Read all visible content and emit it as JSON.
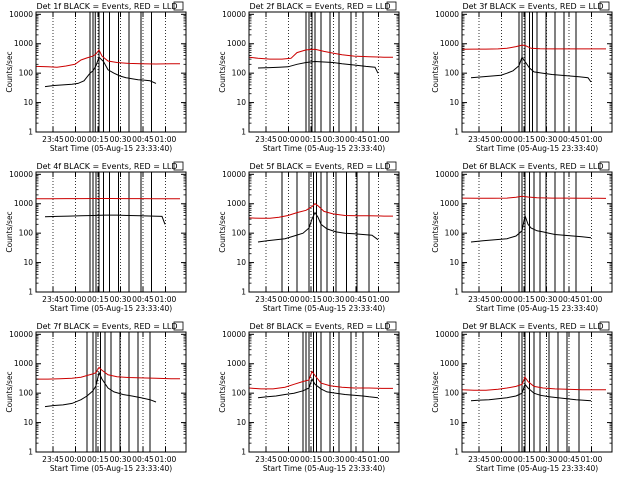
{
  "colors": {
    "events": "#000000",
    "lld": "#cc0000",
    "background": "#ffffff",
    "vline": "#000000"
  },
  "shared": {
    "ylabel": "Counts/sec",
    "xlabel": "Start Time (05-Aug-15 23:33:40)",
    "xtick_labels": [
      "23:45",
      "00:00",
      "00:15",
      "00:30",
      "00:45",
      "01:00"
    ],
    "xtick_minutes": [
      11.33,
      26.33,
      41.33,
      56.33,
      71.33,
      86.33
    ],
    "xlim_minutes": [
      0,
      100
    ],
    "ytick_labels": [
      "1",
      "10",
      "100",
      "1000",
      "10000"
    ],
    "ytick_values": [
      1,
      10,
      100,
      1000,
      10000
    ],
    "ylim": [
      1,
      12000
    ],
    "yscale": "log",
    "dotted_vlines_minutes": [
      11.33,
      26.33,
      41.33,
      56.33,
      71.33,
      86.33
    ]
  },
  "chart_data": [
    {
      "type": "line",
      "title": "Det 1f BLACK = Events, RED = LLD",
      "vlines_minutes": [
        36,
        38,
        39.5,
        42,
        45,
        49,
        55,
        62,
        70,
        77
      ],
      "series": [
        {
          "name": "Events",
          "color": "#000000",
          "x": [
            6,
            12,
            18,
            24,
            28,
            32,
            36,
            38,
            40,
            42,
            45,
            48,
            52,
            56,
            60,
            64,
            68,
            72,
            76,
            80
          ],
          "y": [
            35,
            38,
            40,
            42,
            45,
            55,
            100,
            120,
            180,
            350,
            250,
            130,
            100,
            80,
            70,
            65,
            60,
            58,
            55,
            45
          ]
        },
        {
          "name": "LLD",
          "color": "#cc0000",
          "x": [
            0,
            8,
            14,
            20,
            26,
            30,
            34,
            38,
            40,
            42,
            44,
            48,
            54,
            62,
            70,
            80,
            90,
            96
          ],
          "y": [
            170,
            165,
            160,
            175,
            200,
            280,
            330,
            380,
            450,
            620,
            380,
            260,
            230,
            215,
            210,
            205,
            210,
            210
          ]
        }
      ]
    },
    {
      "type": "line",
      "title": "Det 2f BLACK = Events, RED = LLD",
      "vlines_minutes": [
        38,
        40,
        42,
        44,
        48,
        54,
        60,
        68,
        76
      ],
      "series": [
        {
          "name": "Events",
          "color": "#000000",
          "x": [
            6,
            14,
            20,
            26,
            32,
            38,
            44,
            50,
            56,
            62,
            70,
            78,
            84,
            86
          ],
          "y": [
            150,
            155,
            160,
            165,
            200,
            230,
            250,
            240,
            230,
            210,
            190,
            170,
            160,
            100
          ]
        },
        {
          "name": "LLD",
          "color": "#cc0000",
          "x": [
            0,
            6,
            14,
            22,
            28,
            32,
            38,
            44,
            50,
            56,
            62,
            70,
            80,
            90,
            96
          ],
          "y": [
            350,
            320,
            300,
            300,
            320,
            500,
            620,
            650,
            550,
            480,
            420,
            380,
            360,
            350,
            350
          ]
        }
      ]
    },
    {
      "type": "line",
      "title": "Det 3f BLACK = Events, RED = LLD",
      "vlines_minutes": [
        38,
        40,
        42,
        45,
        47,
        50,
        56,
        62,
        68,
        76
      ],
      "series": [
        {
          "name": "Events",
          "color": "#000000",
          "x": [
            6,
            14,
            20,
            26,
            30,
            34,
            38,
            40,
            42,
            45,
            48,
            54,
            60,
            66,
            72,
            78,
            84,
            86
          ],
          "y": [
            70,
            75,
            80,
            85,
            100,
            120,
            180,
            350,
            250,
            150,
            110,
            100,
            90,
            85,
            80,
            75,
            70,
            50
          ]
        },
        {
          "name": "LLD",
          "color": "#cc0000",
          "x": [
            0,
            8,
            16,
            24,
            30,
            36,
            40,
            42,
            46,
            52,
            60,
            70,
            80,
            96
          ],
          "y": [
            650,
            660,
            660,
            670,
            700,
            800,
            900,
            880,
            700,
            680,
            670,
            670,
            670,
            670
          ]
        }
      ]
    },
    {
      "type": "line",
      "title": "Det 4f BLACK = Events, RED = LLD",
      "vlines_minutes": [
        36,
        38,
        40,
        42,
        45,
        49,
        55,
        62,
        70,
        77
      ],
      "series": [
        {
          "name": "Events",
          "color": "#000000",
          "x": [
            6,
            14,
            22,
            30,
            38,
            46,
            54,
            62,
            70,
            78,
            84,
            86
          ],
          "y": [
            360,
            370,
            380,
            390,
            400,
            410,
            410,
            400,
            390,
            380,
            370,
            200
          ]
        },
        {
          "name": "LLD",
          "color": "#cc0000",
          "x": [
            0,
            10,
            20,
            30,
            40,
            50,
            60,
            70,
            80,
            90,
            96
          ],
          "y": [
            1480,
            1490,
            1500,
            1500,
            1510,
            1510,
            1500,
            1500,
            1490,
            1490,
            1490
          ]
        }
      ]
    },
    {
      "type": "line",
      "title": "Det 5f BLACK = Events, RED = LLD",
      "vlines_minutes": [
        22,
        32,
        40,
        43,
        45,
        48,
        52,
        58,
        65,
        72,
        80
      ],
      "series": [
        {
          "name": "Events",
          "color": "#000000",
          "x": [
            6,
            12,
            18,
            24,
            30,
            36,
            40,
            42,
            44,
            46,
            48,
            52,
            58,
            64,
            70,
            76,
            82,
            86
          ],
          "y": [
            50,
            55,
            60,
            65,
            80,
            100,
            150,
            300,
            500,
            350,
            200,
            140,
            110,
            100,
            95,
            90,
            85,
            60
          ]
        },
        {
          "name": "LLD",
          "color": "#cc0000",
          "x": [
            0,
            8,
            14,
            20,
            26,
            32,
            38,
            42,
            44,
            46,
            50,
            56,
            64,
            72,
            80,
            90,
            96
          ],
          "y": [
            330,
            320,
            320,
            350,
            400,
            500,
            600,
            800,
            1000,
            850,
            550,
            450,
            400,
            390,
            390,
            380,
            380
          ]
        }
      ]
    },
    {
      "type": "line",
      "title": "Det 6f BLACK = Events, RED = LLD",
      "vlines_minutes": [
        38,
        40,
        42,
        45,
        48,
        52,
        56,
        62,
        68,
        76
      ],
      "series": [
        {
          "name": "Events",
          "color": "#000000",
          "x": [
            6,
            14,
            22,
            30,
            36,
            40,
            42,
            44,
            46,
            50,
            54,
            58,
            62,
            68,
            74,
            80,
            86
          ],
          "y": [
            50,
            55,
            60,
            65,
            80,
            120,
            400,
            200,
            150,
            120,
            110,
            100,
            90,
            85,
            80,
            75,
            70
          ]
        },
        {
          "name": "LLD",
          "color": "#cc0000",
          "x": [
            0,
            10,
            20,
            30,
            36,
            40,
            44,
            50,
            60,
            70,
            80,
            90,
            96
          ],
          "y": [
            1550,
            1540,
            1540,
            1560,
            1650,
            1800,
            1700,
            1600,
            1560,
            1550,
            1540,
            1530,
            1520
          ]
        }
      ]
    },
    {
      "type": "line",
      "title": "Det 7f BLACK = Events, RED = LLD",
      "vlines_minutes": [
        34,
        38,
        40,
        43,
        46,
        50,
        56,
        62,
        68,
        76
      ],
      "series": [
        {
          "name": "Events",
          "color": "#000000",
          "x": [
            6,
            12,
            18,
            24,
            30,
            34,
            38,
            40,
            42,
            44,
            48,
            52,
            58,
            64,
            70,
            76,
            80
          ],
          "y": [
            35,
            38,
            40,
            45,
            60,
            80,
            120,
            180,
            500,
            300,
            150,
            110,
            90,
            80,
            70,
            60,
            50
          ]
        },
        {
          "name": "LLD",
          "color": "#cc0000",
          "x": [
            0,
            8,
            16,
            24,
            30,
            34,
            38,
            40,
            42,
            44,
            48,
            54,
            62,
            70,
            80,
            90,
            96
          ],
          "y": [
            300,
            300,
            310,
            320,
            350,
            400,
            450,
            500,
            750,
            600,
            420,
            360,
            340,
            330,
            320,
            310,
            310
          ]
        }
      ]
    },
    {
      "type": "line",
      "title": "Det 8f BLACK = Events, RED = LLD",
      "vlines_minutes": [
        36,
        38,
        40,
        43,
        45,
        48,
        54,
        60,
        68,
        76
      ],
      "series": [
        {
          "name": "Events",
          "color": "#000000",
          "x": [
            6,
            12,
            18,
            24,
            30,
            36,
            40,
            42,
            44,
            48,
            52,
            58,
            64,
            70,
            76,
            80,
            86
          ],
          "y": [
            70,
            75,
            80,
            90,
            100,
            120,
            150,
            300,
            200,
            140,
            110,
            100,
            90,
            85,
            80,
            75,
            70
          ]
        },
        {
          "name": "LLD",
          "color": "#cc0000",
          "x": [
            0,
            8,
            16,
            24,
            30,
            36,
            40,
            42,
            44,
            48,
            54,
            62,
            70,
            80,
            90,
            96
          ],
          "y": [
            150,
            140,
            140,
            160,
            200,
            250,
            280,
            550,
            400,
            220,
            180,
            160,
            150,
            150,
            145,
            145
          ]
        }
      ]
    },
    {
      "type": "line",
      "title": "Det 9f BLACK = Events, RED = LLD",
      "vlines_minutes": [
        38,
        40,
        42,
        45,
        48,
        52,
        58,
        64,
        70,
        78
      ],
      "series": [
        {
          "name": "Events",
          "color": "#000000",
          "x": [
            6,
            12,
            18,
            24,
            30,
            36,
            40,
            42,
            44,
            48,
            52,
            58,
            64,
            70,
            76,
            80,
            86
          ],
          "y": [
            55,
            58,
            60,
            65,
            70,
            80,
            100,
            200,
            150,
            100,
            85,
            75,
            70,
            65,
            60,
            58,
            55
          ]
        },
        {
          "name": "LLD",
          "color": "#cc0000",
          "x": [
            0,
            8,
            16,
            24,
            30,
            36,
            40,
            42,
            44,
            48,
            54,
            62,
            70,
            80,
            90,
            96
          ],
          "y": [
            130,
            125,
            125,
            135,
            150,
            170,
            200,
            350,
            250,
            170,
            150,
            140,
            135,
            130,
            130,
            130
          ]
        }
      ]
    }
  ]
}
